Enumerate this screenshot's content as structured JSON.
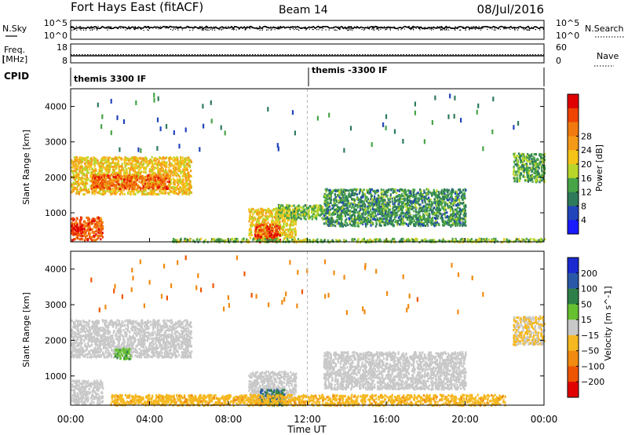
{
  "header": {
    "station": "Fort Hays East (fitACF)",
    "beam": "Beam 14",
    "date": "08/Jul/2016"
  },
  "strips": {
    "nsky_label": "N.Sky",
    "nsearch_label": "N.Search",
    "noise_ticks_left": [
      "10^5",
      "10^0"
    ],
    "noise_ticks_right": [
      "10^5",
      "10^0"
    ],
    "freq_label_top": "Freq.",
    "freq_label_bottom": "[MHz]",
    "freq_ticks": [
      "18",
      "8"
    ],
    "nave_label": "Nave",
    "nave_ticks": [
      "60",
      "0"
    ],
    "cpid_label": "CPID",
    "cpid_segments": [
      {
        "label": "themis 3300 IF",
        "start_hour": 0
      },
      {
        "label": "themis -3300 IF",
        "start_hour": 12
      }
    ],
    "nsky_level": 4.0,
    "nsearch_level": 4.3,
    "freq_value": 10.4,
    "nave_value": 22
  },
  "axes": {
    "ylabel": "Slant Range [km]",
    "yticks": [
      "1000",
      "2000",
      "3000",
      "4000"
    ],
    "xticks": [
      "00:00",
      "04:00",
      "08:00",
      "12:00",
      "16:00",
      "20:00",
      "00:00"
    ],
    "xlabel": "Time UT"
  },
  "chart_data": [
    {
      "type": "heatmap",
      "title": "Power",
      "colorbar_label": "Power [dB]",
      "colorbar_ticks": [
        "4",
        "8",
        "12",
        "16",
        "20",
        "24",
        "28"
      ],
      "colorbar_range": [
        0,
        30
      ],
      "colors": [
        "#1a1aff",
        "#2244bb",
        "#2e7a5a",
        "#47a447",
        "#b8d62a",
        "#f5c418",
        "#f59a18",
        "#f07a10",
        "#ee4400",
        "#e00000"
      ],
      "ylabel": "Slant Range [km]",
      "xlabel": "",
      "xlim_hours": [
        0,
        24
      ],
      "ylim_km": [
        180,
        4500
      ],
      "regions": [
        {
          "t0": 0.0,
          "t1": 6.1,
          "r0": 1550,
          "r1": 2600,
          "level": 17
        },
        {
          "t0": 1.0,
          "t1": 5.0,
          "r0": 1700,
          "r1": 2100,
          "level": 24
        },
        {
          "t0": 0.0,
          "t1": 1.6,
          "r0": 250,
          "r1": 900,
          "level": 24
        },
        {
          "t0": 0.0,
          "t1": 0.6,
          "r0": 400,
          "r1": 700,
          "level": 28
        },
        {
          "t0": 9.0,
          "t1": 11.4,
          "r0": 300,
          "r1": 1150,
          "level": 16
        },
        {
          "t0": 9.3,
          "t1": 10.6,
          "r0": 200,
          "r1": 700,
          "level": 26
        },
        {
          "t0": 10.5,
          "t1": 12.8,
          "r0": 850,
          "r1": 1250,
          "level": 12
        },
        {
          "t0": 12.8,
          "t1": 20.0,
          "r0": 650,
          "r1": 1700,
          "level": 9
        },
        {
          "t0": 5.0,
          "t1": 24.0,
          "r0": 200,
          "r1": 300,
          "level": 12
        },
        {
          "t0": 22.4,
          "t1": 24.0,
          "r0": 1900,
          "r1": 2700,
          "level": 10
        },
        {
          "t0": 1.0,
          "t1": 23.0,
          "r0": 2800,
          "r1": 4400,
          "level": 8
        }
      ]
    },
    {
      "type": "heatmap",
      "title": "Velocity",
      "colorbar_label": "Velocity [m s^-1]",
      "colorbar_ticks": [
        "200",
        "100",
        "50",
        "15",
        "-15",
        "-50",
        "-100",
        "-200"
      ],
      "colorbar_range": [
        -250,
        250
      ],
      "colors": [
        "#1a2ad0",
        "#2a58a8",
        "#2e8048",
        "#66c030",
        "#c8c8c8",
        "#f5b820",
        "#f08a10",
        "#ee5500",
        "#e00000"
      ],
      "ylabel": "Slant Range [km]",
      "xlabel": "Time UT",
      "xlim_hours": [
        0,
        24
      ],
      "ylim_km": [
        180,
        4500
      ],
      "regions": [
        {
          "t0": 0.0,
          "t1": 6.1,
          "r0": 1550,
          "r1": 2600,
          "value": 0
        },
        {
          "t0": 2.2,
          "t1": 3.0,
          "r0": 1500,
          "r1": 1800,
          "value": 70
        },
        {
          "t0": 0.0,
          "t1": 1.6,
          "r0": 250,
          "r1": 900,
          "value": 0
        },
        {
          "t0": 9.0,
          "t1": 11.4,
          "r0": 300,
          "r1": 1150,
          "value": 0
        },
        {
          "t0": 9.5,
          "t1": 10.8,
          "r0": 200,
          "r1": 650,
          "value": 140
        },
        {
          "t0": 2.0,
          "t1": 22.0,
          "r0": 200,
          "r1": 500,
          "value": -60
        },
        {
          "t0": 12.8,
          "t1": 20.0,
          "r0": 650,
          "r1": 1700,
          "value": 0
        },
        {
          "t0": 22.4,
          "t1": 24.0,
          "r0": 1900,
          "r1": 2700,
          "value": -30
        },
        {
          "t0": 1.0,
          "t1": 23.0,
          "r0": 2800,
          "r1": 4400,
          "value": -120
        }
      ]
    }
  ]
}
